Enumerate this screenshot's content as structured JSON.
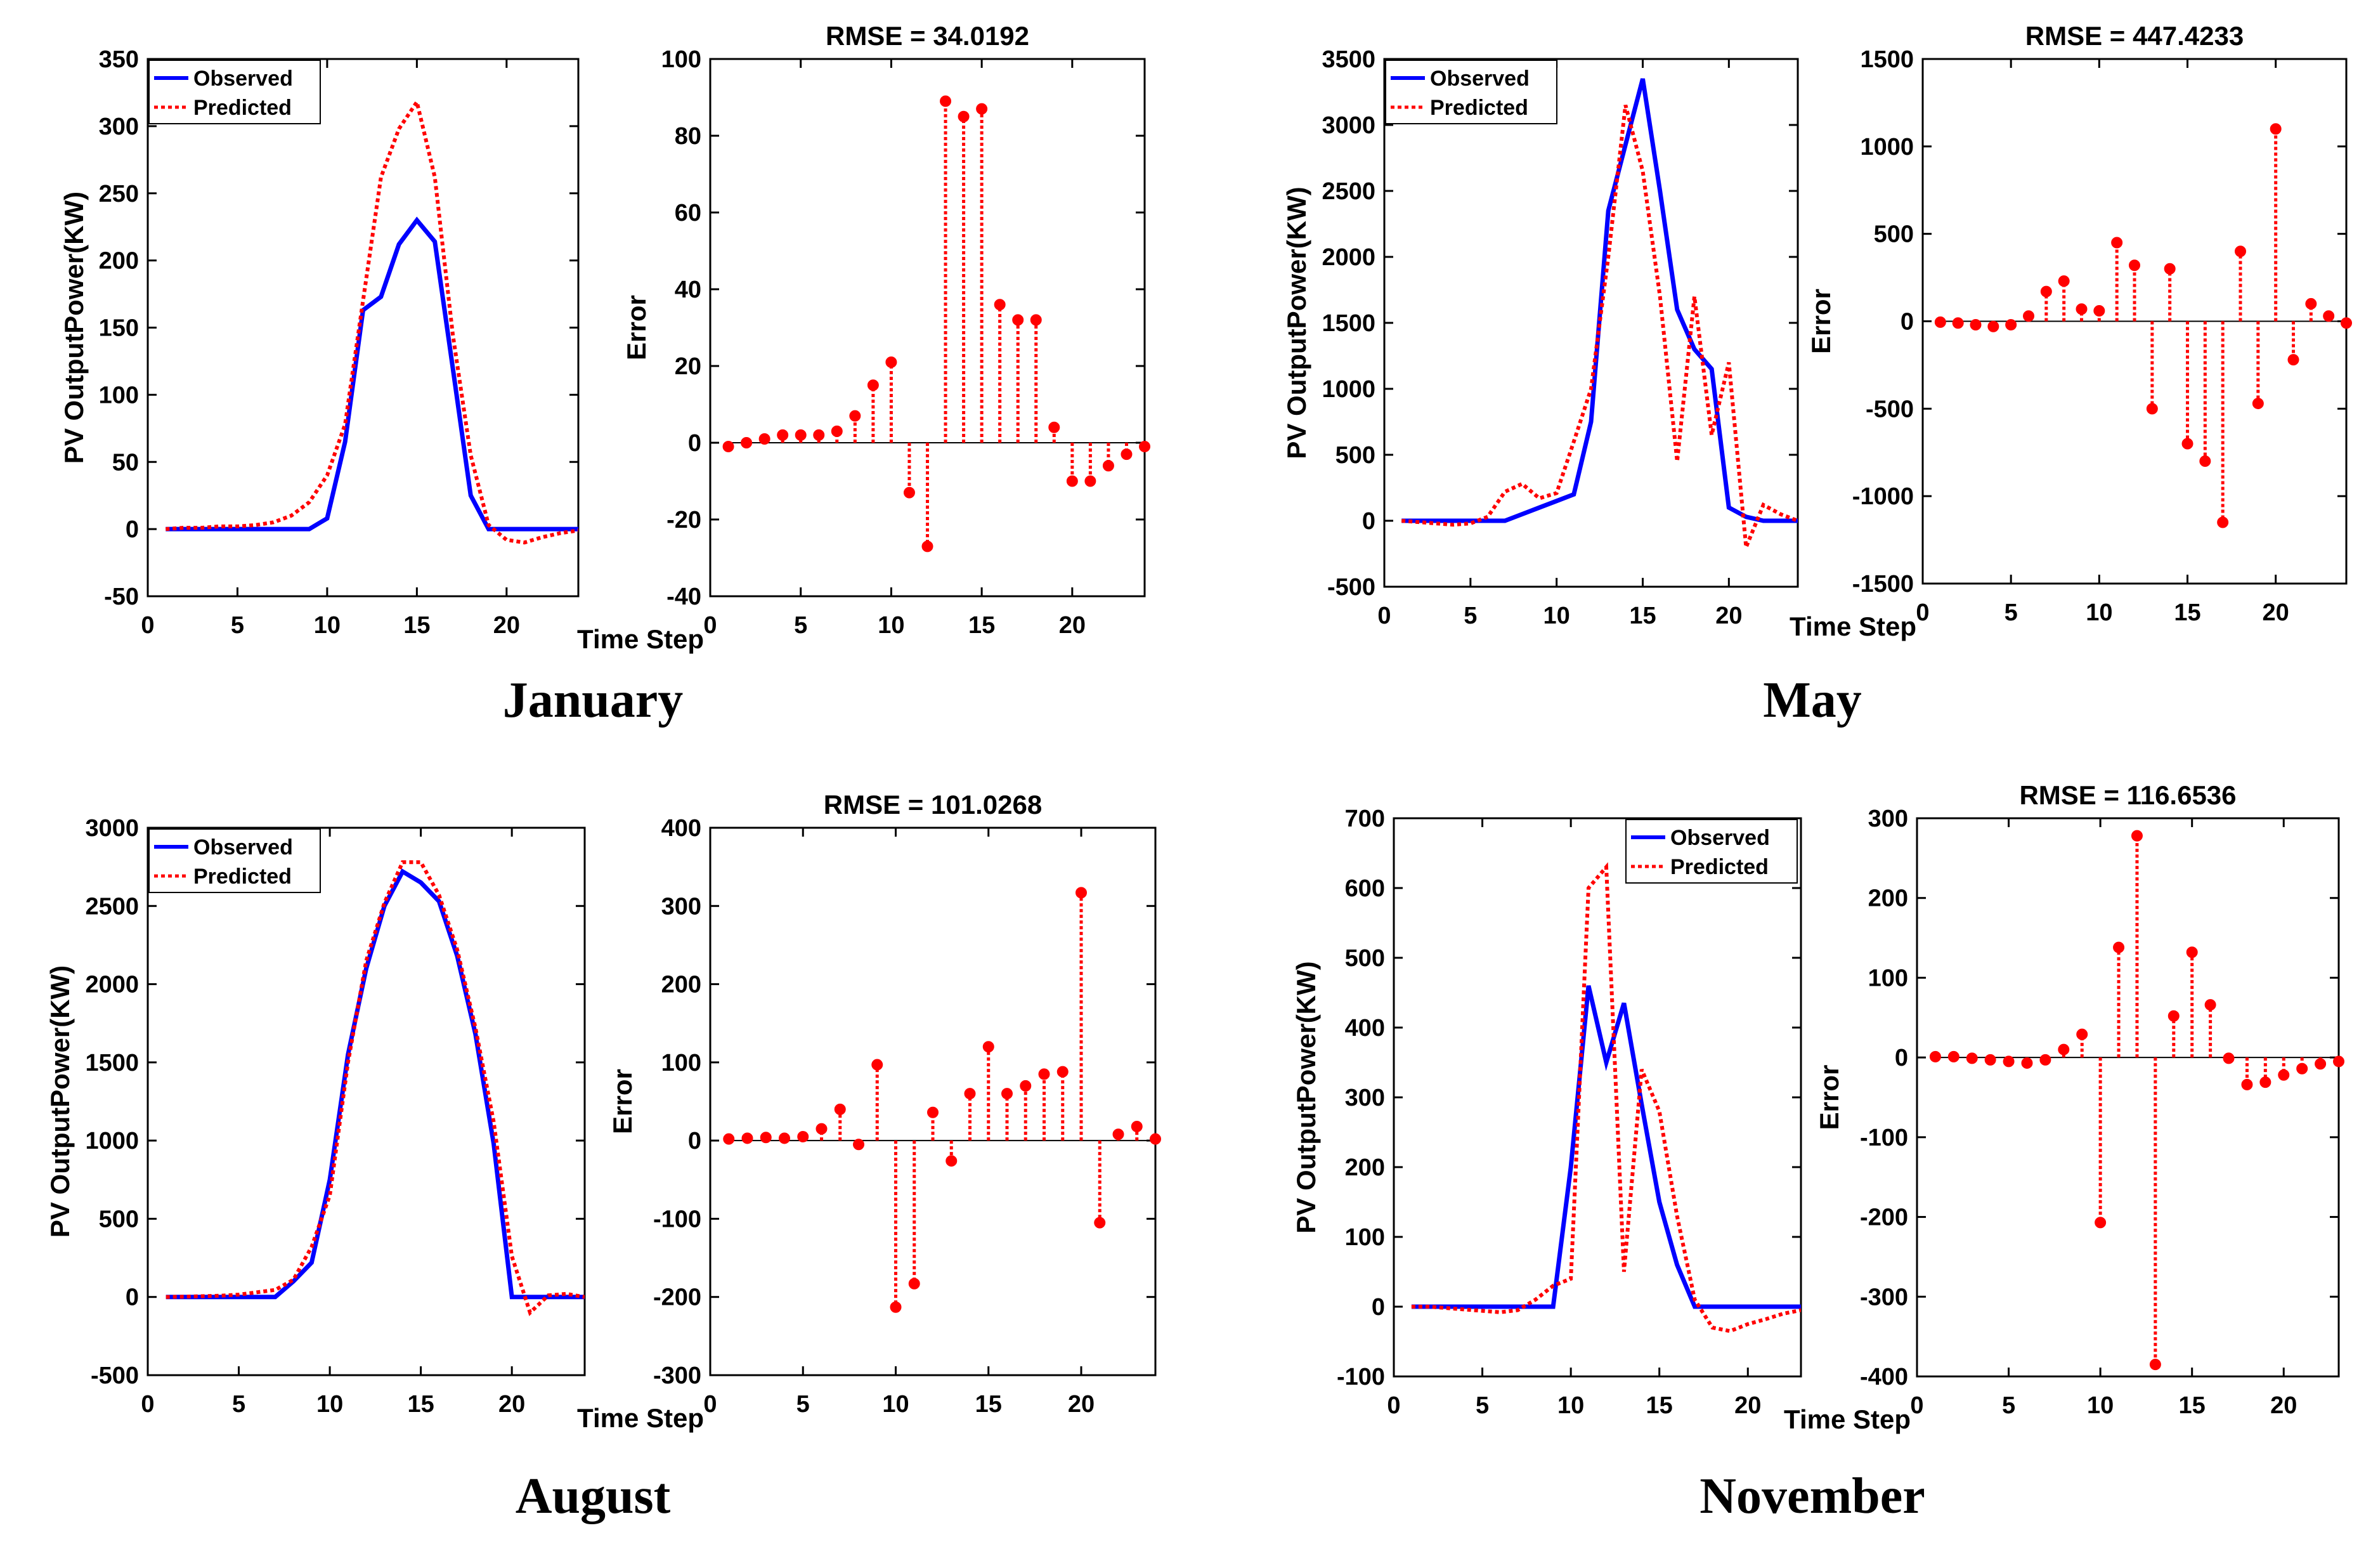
{
  "colors": {
    "observed": "#0000ff",
    "predicted": "#ff0000",
    "axis": "#000000"
  },
  "chart_data": [
    {
      "type": "line",
      "caption": "January",
      "ylabel": "PV OutputPower(KW)",
      "xlabel": "",
      "xlim": [
        0,
        24
      ],
      "ylim": [
        -50,
        350
      ],
      "xticks": [
        "0",
        "5",
        "10",
        "15",
        "20"
      ],
      "yticks": [
        "-50",
        "0",
        "50",
        "100",
        "150",
        "200",
        "250",
        "300",
        "350"
      ],
      "legend": [
        "Observed",
        "Predicted"
      ],
      "series": [
        {
          "name": "Observed",
          "x": [
            1,
            2,
            3,
            4,
            5,
            6,
            7,
            8,
            9,
            10,
            11,
            12,
            13,
            14,
            15,
            16,
            17,
            18,
            19,
            20,
            21,
            22,
            23,
            24
          ],
          "values": [
            0,
            0,
            0,
            0,
            0,
            0,
            0,
            0,
            0,
            8,
            65,
            163,
            173,
            212,
            230,
            214,
            120,
            25,
            0,
            0,
            0,
            0,
            0,
            0
          ]
        },
        {
          "name": "Predicted",
          "x": [
            1,
            2,
            3,
            4,
            5,
            6,
            7,
            8,
            9,
            10,
            11,
            12,
            13,
            14,
            15,
            16,
            17,
            18,
            19,
            20,
            21,
            22,
            23,
            24
          ],
          "values": [
            0,
            1,
            1,
            2,
            2,
            3,
            5,
            10,
            20,
            40,
            78,
            170,
            262,
            298,
            318,
            262,
            145,
            55,
            3,
            -8,
            -10,
            -6,
            -3,
            -1
          ]
        }
      ]
    },
    {
      "type": "stem",
      "caption": "",
      "title": "RMSE = 34.0192",
      "ylabel": "Error",
      "xlabel": "Time Step",
      "xlim": [
        0,
        24
      ],
      "ylim": [
        -40,
        100
      ],
      "xticks": [
        "0",
        "5",
        "10",
        "15",
        "20"
      ],
      "yticks": [
        "-40",
        "-20",
        "0",
        "20",
        "40",
        "60",
        "80",
        "100"
      ],
      "x": [
        1,
        2,
        3,
        4,
        5,
        6,
        7,
        8,
        9,
        10,
        11,
        12,
        13,
        14,
        15,
        16,
        17,
        18,
        19,
        20,
        21,
        22,
        23,
        24
      ],
      "values": [
        -1,
        0,
        1,
        2,
        2,
        2,
        3,
        7,
        15,
        21,
        -13,
        -27,
        89,
        85,
        87,
        36,
        32,
        32,
        4,
        -10,
        -10,
        -6,
        -3,
        -1
      ]
    },
    {
      "type": "line",
      "caption": "May",
      "ylabel": "PV OutputPower(KW)",
      "xlabel": "",
      "xlim": [
        0,
        24
      ],
      "ylim": [
        -500,
        3500
      ],
      "xticks": [
        "0",
        "5",
        "10",
        "15",
        "20"
      ],
      "yticks": [
        "-500",
        "0",
        "500",
        "1000",
        "1500",
        "2000",
        "2500",
        "3000",
        "3500"
      ],
      "legend": [
        "Observed",
        "Predicted"
      ],
      "series": [
        {
          "name": "Observed",
          "x": [
            1,
            2,
            3,
            4,
            5,
            6,
            7,
            8,
            9,
            10,
            11,
            12,
            13,
            14,
            15,
            16,
            17,
            18,
            19,
            20,
            21,
            22,
            23,
            24
          ],
          "values": [
            0,
            0,
            0,
            0,
            0,
            0,
            0,
            50,
            100,
            150,
            200,
            750,
            2350,
            2850,
            3350,
            2500,
            1600,
            1300,
            1150,
            100,
            30,
            0,
            0,
            0
          ]
        },
        {
          "name": "Predicted",
          "x": [
            1,
            2,
            3,
            4,
            5,
            6,
            7,
            8,
            9,
            10,
            11,
            12,
            13,
            14,
            15,
            16,
            17,
            18,
            19,
            20,
            21,
            22,
            23,
            24
          ],
          "values": [
            0,
            -10,
            -20,
            -30,
            -20,
            30,
            220,
            280,
            170,
            210,
            600,
            1000,
            2000,
            3150,
            2650,
            1700,
            450,
            1700,
            650,
            1200,
            -200,
            120,
            50,
            0
          ]
        }
      ]
    },
    {
      "type": "stem",
      "caption": "",
      "title": "RMSE = 447.4233",
      "ylabel": "Error",
      "xlabel": "Time Step",
      "xlim": [
        0,
        24
      ],
      "ylim": [
        -1500,
        1500
      ],
      "xticks": [
        "0",
        "5",
        "10",
        "15",
        "20"
      ],
      "yticks": [
        "-1500",
        "-1000",
        "-500",
        "0",
        "500",
        "1000",
        "1500"
      ],
      "x": [
        1,
        2,
        3,
        4,
        5,
        6,
        7,
        8,
        9,
        10,
        11,
        12,
        13,
        14,
        15,
        16,
        17,
        18,
        19,
        20,
        21,
        22,
        23,
        24
      ],
      "values": [
        -5,
        -10,
        -20,
        -30,
        -20,
        30,
        170,
        230,
        70,
        60,
        450,
        320,
        -500,
        300,
        -700,
        -800,
        -1150,
        400,
        -470,
        1100,
        -220,
        100,
        30,
        -10
      ]
    },
    {
      "type": "line",
      "caption": "August",
      "ylabel": "PV OutputPower(KW)",
      "xlabel": "",
      "xlim": [
        0,
        24
      ],
      "ylim": [
        -500,
        3000
      ],
      "xticks": [
        "0",
        "5",
        "10",
        "15",
        "20"
      ],
      "yticks": [
        "-500",
        "0",
        "500",
        "1000",
        "1500",
        "2000",
        "2500",
        "3000"
      ],
      "legend": [
        "Observed",
        "Predicted"
      ],
      "series": [
        {
          "name": "Observed",
          "x": [
            1,
            2,
            3,
            4,
            5,
            6,
            7,
            8,
            9,
            10,
            11,
            12,
            13,
            14,
            15,
            16,
            17,
            18,
            19,
            20,
            21,
            22,
            23,
            24
          ],
          "values": [
            0,
            0,
            0,
            0,
            0,
            0,
            0,
            100,
            220,
            750,
            1550,
            2100,
            2500,
            2720,
            2650,
            2530,
            2180,
            1680,
            980,
            0,
            0,
            0,
            0,
            0
          ]
        },
        {
          "name": "Predicted",
          "x": [
            1,
            2,
            3,
            4,
            5,
            6,
            7,
            8,
            9,
            10,
            11,
            12,
            13,
            14,
            15,
            16,
            17,
            18,
            19,
            20,
            21,
            22,
            23,
            24
          ],
          "values": [
            0,
            2,
            5,
            8,
            15,
            30,
            45,
            110,
            320,
            650,
            1500,
            2150,
            2520,
            2780,
            2780,
            2570,
            2220,
            1720,
            1120,
            260,
            -100,
            10,
            20,
            0
          ]
        }
      ]
    },
    {
      "type": "stem",
      "caption": "",
      "title": "RMSE = 101.0268",
      "ylabel": "Error",
      "xlabel": "Time Step",
      "xlim": [
        0,
        24
      ],
      "ylim": [
        -300,
        400
      ],
      "xticks": [
        "0",
        "5",
        "10",
        "15",
        "20"
      ],
      "yticks": [
        "-300",
        "-200",
        "-100",
        "0",
        "100",
        "200",
        "300",
        "400"
      ],
      "x": [
        1,
        2,
        3,
        4,
        5,
        6,
        7,
        8,
        9,
        10,
        11,
        12,
        13,
        14,
        15,
        16,
        17,
        18,
        19,
        20,
        21,
        22,
        23,
        24
      ],
      "values": [
        2,
        3,
        4,
        3,
        5,
        15,
        40,
        -5,
        97,
        -213,
        -183,
        36,
        -26,
        60,
        120,
        60,
        70,
        85,
        88,
        317,
        -105,
        8,
        18,
        2
      ]
    },
    {
      "type": "line",
      "caption": "November",
      "ylabel": "PV OutputPower(KW)",
      "xlabel": "",
      "xlim": [
        0,
        23
      ],
      "ylim": [
        -100,
        700
      ],
      "xticks": [
        "0",
        "5",
        "10",
        "15",
        "20"
      ],
      "yticks": [
        "-100",
        "0",
        "100",
        "200",
        "300",
        "400",
        "500",
        "600",
        "700"
      ],
      "legend": [
        "Observed",
        "Predicted"
      ],
      "series": [
        {
          "name": "Observed",
          "x": [
            1,
            2,
            3,
            4,
            5,
            6,
            7,
            8,
            9,
            10,
            11,
            12,
            13,
            14,
            15,
            16,
            17,
            18,
            19,
            20,
            21,
            22,
            23
          ],
          "values": [
            0,
            0,
            0,
            0,
            0,
            0,
            0,
            0,
            0,
            200,
            460,
            350,
            435,
            290,
            150,
            60,
            0,
            0,
            0,
            0,
            0,
            0,
            0
          ]
        },
        {
          "name": "Predicted",
          "x": [
            1,
            2,
            3,
            4,
            5,
            6,
            7,
            8,
            9,
            10,
            11,
            12,
            13,
            14,
            15,
            16,
            17,
            18,
            19,
            20,
            21,
            22,
            23
          ],
          "values": [
            0,
            0,
            -2,
            -4,
            -6,
            -8,
            -5,
            10,
            30,
            40,
            600,
            630,
            50,
            340,
            280,
            130,
            10,
            -30,
            -35,
            -25,
            -18,
            -10,
            -5
          ]
        }
      ]
    },
    {
      "type": "stem",
      "caption": "",
      "title": "RMSE = 116.6536",
      "ylabel": "Error",
      "xlabel": "Time Step",
      "xlim": [
        0,
        23
      ],
      "ylim": [
        -400,
        300
      ],
      "xticks": [
        "0",
        "5",
        "10",
        "15",
        "20"
      ],
      "yticks": [
        "-400",
        "-300",
        "-200",
        "-100",
        "0",
        "100",
        "200",
        "300"
      ],
      "x": [
        1,
        2,
        3,
        4,
        5,
        6,
        7,
        8,
        9,
        10,
        11,
        12,
        13,
        14,
        15,
        16,
        17,
        18,
        19,
        20,
        21,
        22,
        23
      ],
      "values": [
        1,
        1,
        -1,
        -3,
        -5,
        -7,
        -3,
        10,
        29,
        -207,
        138,
        278,
        -385,
        52,
        132,
        66,
        -1,
        -34,
        -31,
        -22,
        -14,
        -8,
        -5
      ]
    }
  ]
}
